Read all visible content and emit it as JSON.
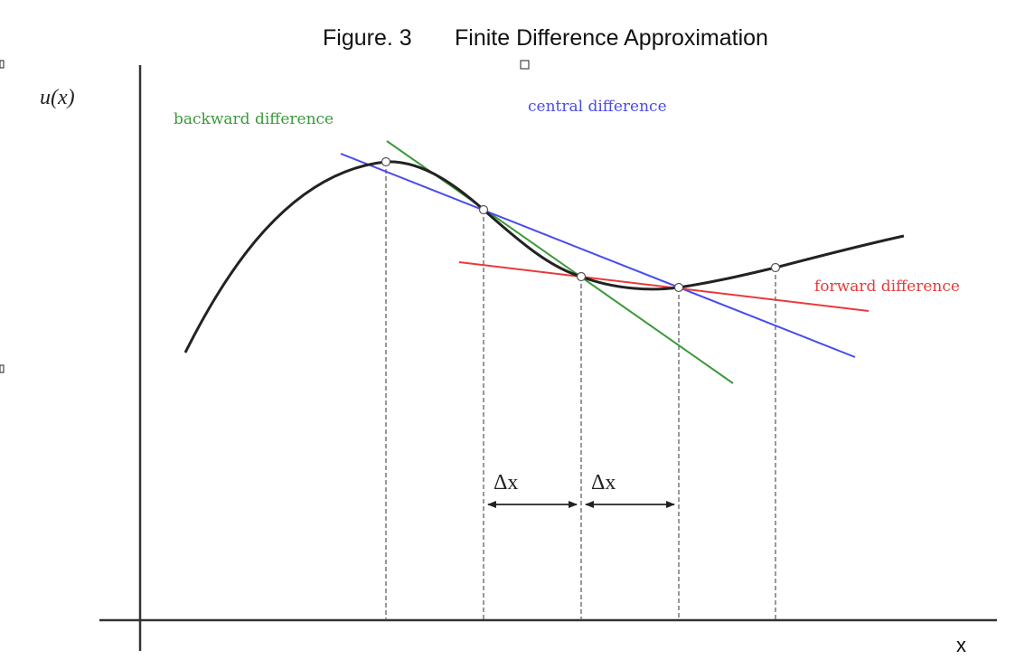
{
  "figure": {
    "number_label": "Figure. 3",
    "title": "Finite Difference Approximation"
  },
  "axes": {
    "y_label": "u(x)",
    "x_label": "x"
  },
  "labels": {
    "backward": "backward difference",
    "central": "central difference",
    "forward": "forward difference"
  },
  "dx_labels": [
    "Δx",
    "Δx"
  ],
  "colors": {
    "curve": "#222222",
    "backward": "#3a9a3a",
    "central": "#4a4af0",
    "forward": "#e83a3a",
    "axes": "#333333",
    "guides": "#555555"
  }
}
